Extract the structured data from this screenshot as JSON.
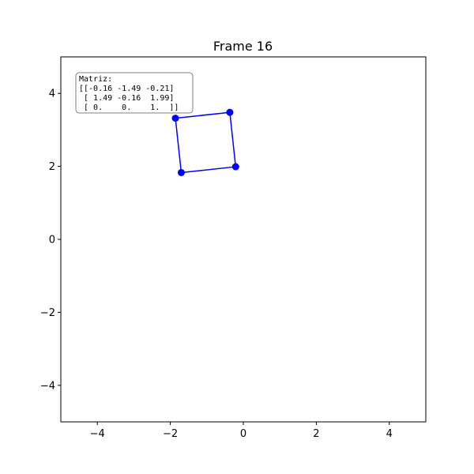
{
  "chart_data": {
    "type": "line",
    "title": "Frame 16",
    "xlabel": "",
    "ylabel": "",
    "xlim": [
      -5,
      5
    ],
    "ylim": [
      -5,
      5
    ],
    "xticks": [
      -4,
      -2,
      0,
      2,
      4
    ],
    "yticks": [
      -4,
      -2,
      0,
      2,
      4
    ],
    "xtick_labels": [
      "−4",
      "−2",
      "0",
      "2",
      "4"
    ],
    "ytick_labels": [
      "−4",
      "−2",
      "0",
      "2",
      "4"
    ],
    "grid": false,
    "series": [
      {
        "closed": true,
        "color": "#0000ff",
        "marker": "circle",
        "x": [
          -0.37,
          -0.21,
          -1.7,
          -1.86
        ],
        "y": [
          3.48,
          1.99,
          1.83,
          3.32
        ]
      }
    ],
    "annotation": {
      "position": "top-left",
      "lines": [
        "Matriz:",
        "[[-0.16 -1.49 -0.21]",
        " [ 1.49 -0.16  1.99]",
        " [ 0.    0.    1.  ]]"
      ]
    }
  }
}
